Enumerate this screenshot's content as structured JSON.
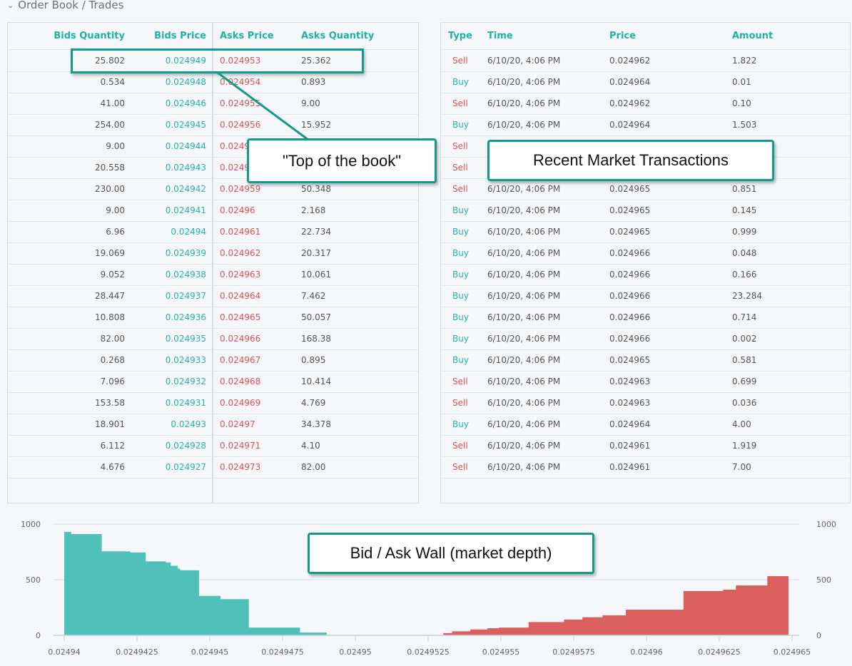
{
  "section": {
    "title": "Order Book / Trades",
    "chevron_icon": "chevron-down-icon"
  },
  "order_book": {
    "headers": {
      "bids_quantity": "Bids Quantity",
      "bids_price": "Bids Price",
      "asks_price": "Asks Price",
      "asks_quantity": "Asks Quantity"
    },
    "rows": [
      {
        "bq": "25.802",
        "bp": "0.024949",
        "ap": "0.024953",
        "aq": "25.362"
      },
      {
        "bq": "0.534",
        "bp": "0.024948",
        "ap": "0.024954",
        "aq": "0.893"
      },
      {
        "bq": "41.00",
        "bp": "0.024946",
        "ap": "0.024955",
        "aq": "9.00"
      },
      {
        "bq": "254.00",
        "bp": "0.024945",
        "ap": "0.024956",
        "aq": "15.952"
      },
      {
        "bq": "9.00",
        "bp": "0.024944",
        "ap": "0.0249",
        "aq": ""
      },
      {
        "bq": "20.558",
        "bp": "0.024943",
        "ap": "0.0249",
        "aq": ""
      },
      {
        "bq": "230.00",
        "bp": "0.024942",
        "ap": "0.024959",
        "aq": "50.348"
      },
      {
        "bq": "9.00",
        "bp": "0.024941",
        "ap": "0.02496",
        "aq": "2.168"
      },
      {
        "bq": "6.96",
        "bp": "0.02494",
        "ap": "0.024961",
        "aq": "22.734"
      },
      {
        "bq": "19.069",
        "bp": "0.024939",
        "ap": "0.024962",
        "aq": "20.317"
      },
      {
        "bq": "9.052",
        "bp": "0.024938",
        "ap": "0.024963",
        "aq": "10.061"
      },
      {
        "bq": "28.447",
        "bp": "0.024937",
        "ap": "0.024964",
        "aq": "7.462"
      },
      {
        "bq": "10.808",
        "bp": "0.024936",
        "ap": "0.024965",
        "aq": "50.057"
      },
      {
        "bq": "82.00",
        "bp": "0.024935",
        "ap": "0.024966",
        "aq": "168.38"
      },
      {
        "bq": "0.268",
        "bp": "0.024933",
        "ap": "0.024967",
        "aq": "0.895"
      },
      {
        "bq": "7.096",
        "bp": "0.024932",
        "ap": "0.024968",
        "aq": "10.414"
      },
      {
        "bq": "153.58",
        "bp": "0.024931",
        "ap": "0.024969",
        "aq": "4.769"
      },
      {
        "bq": "18.901",
        "bp": "0.02493",
        "ap": "0.02497",
        "aq": "34.378"
      },
      {
        "bq": "6.112",
        "bp": "0.024928",
        "ap": "0.024971",
        "aq": "4.10"
      },
      {
        "bq": "4.676",
        "bp": "0.024927",
        "ap": "0.024973",
        "aq": "82.00"
      }
    ]
  },
  "trades": {
    "headers": {
      "type": "Type",
      "time": "Time",
      "price": "Price",
      "amount": "Amount"
    },
    "rows": [
      {
        "type": "Sell",
        "time": "6/10/20, 4:06 PM",
        "price": "0.024962",
        "amount": "1.822"
      },
      {
        "type": "Buy",
        "time": "6/10/20, 4:06 PM",
        "price": "0.024964",
        "amount": "0.01"
      },
      {
        "type": "Sell",
        "time": "6/10/20, 4:06 PM",
        "price": "0.024962",
        "amount": "0.10"
      },
      {
        "type": "Buy",
        "time": "6/10/20, 4:06 PM",
        "price": "0.024964",
        "amount": "1.503"
      },
      {
        "type": "Sell",
        "time": "",
        "price": "",
        "amount": ""
      },
      {
        "type": "Sell",
        "time": "",
        "price": "",
        "amount": ""
      },
      {
        "type": "Sell",
        "time": "6/10/20, 4:06 PM",
        "price": "0.024965",
        "amount": "0.851"
      },
      {
        "type": "Buy",
        "time": "6/10/20, 4:06 PM",
        "price": "0.024965",
        "amount": "0.145"
      },
      {
        "type": "Buy",
        "time": "6/10/20, 4:06 PM",
        "price": "0.024965",
        "amount": "0.999"
      },
      {
        "type": "Buy",
        "time": "6/10/20, 4:06 PM",
        "price": "0.024966",
        "amount": "0.048"
      },
      {
        "type": "Buy",
        "time": "6/10/20, 4:06 PM",
        "price": "0.024966",
        "amount": "0.166"
      },
      {
        "type": "Buy",
        "time": "6/10/20, 4:06 PM",
        "price": "0.024966",
        "amount": "23.284"
      },
      {
        "type": "Buy",
        "time": "6/10/20, 4:06 PM",
        "price": "0.024966",
        "amount": "0.714"
      },
      {
        "type": "Buy",
        "time": "6/10/20, 4:06 PM",
        "price": "0.024966",
        "amount": "0.002"
      },
      {
        "type": "Buy",
        "time": "6/10/20, 4:06 PM",
        "price": "0.024965",
        "amount": "0.581"
      },
      {
        "type": "Sell",
        "time": "6/10/20, 4:06 PM",
        "price": "0.024963",
        "amount": "0.699"
      },
      {
        "type": "Sell",
        "time": "6/10/20, 4:06 PM",
        "price": "0.024963",
        "amount": "0.036"
      },
      {
        "type": "Buy",
        "time": "6/10/20, 4:06 PM",
        "price": "0.024964",
        "amount": "4.00"
      },
      {
        "type": "Sell",
        "time": "6/10/20, 4:06 PM",
        "price": "0.024961",
        "amount": "1.919"
      },
      {
        "type": "Sell",
        "time": "6/10/20, 4:06 PM",
        "price": "0.024961",
        "amount": "7.00"
      }
    ]
  },
  "annotations": {
    "top_of_book": "\"Top of the book\"",
    "recent_trades": "Recent Market Transactions",
    "depth": "Bid / Ask Wall (market depth)"
  },
  "colors": {
    "bid": "#4fc1b9",
    "ask": "#d9605c",
    "accent": "#1fb1a4",
    "callout_border": "#129a8d"
  },
  "chart_data": {
    "type": "area",
    "xlim": [
      0.02494,
      0.024965
    ],
    "ylim": [
      0,
      1000
    ],
    "x_ticks": [
      "0.02494",
      "0.0249425",
      "0.024945",
      "0.0249475",
      "0.02495",
      "0.0249525",
      "0.024955",
      "0.0249575",
      "0.02496",
      "0.0249625",
      "0.024965"
    ],
    "y_ticks": [
      "0",
      "500",
      "1000"
    ],
    "grid": true,
    "series": [
      {
        "side": "bid",
        "step": true,
        "x": [
          0.02494,
          0.02494024,
          0.02494129,
          0.02494227,
          0.0249428,
          0.02494349,
          0.02494366,
          0.0249439,
          0.02494398,
          0.02494463,
          0.02494537,
          0.02494634,
          0.0249481,
          0.02494902
        ],
        "y": [
          930,
          910,
          755,
          745,
          665,
          655,
          625,
          600,
          585,
          355,
          325,
          70,
          25,
          25
        ]
      },
      {
        "side": "ask",
        "step": true,
        "x": [
          0.02495302,
          0.02495332,
          0.02495395,
          0.02495454,
          0.02495493,
          0.02495595,
          0.02495717,
          0.0249578,
          0.02495849,
          0.02495929,
          0.02496127,
          0.02496263,
          0.02496307,
          0.02496415,
          0.02496488
        ],
        "y": [
          20,
          36,
          53,
          64,
          70,
          119,
          142,
          163,
          180,
          231,
          398,
          411,
          449,
          532,
          532
        ]
      }
    ]
  }
}
